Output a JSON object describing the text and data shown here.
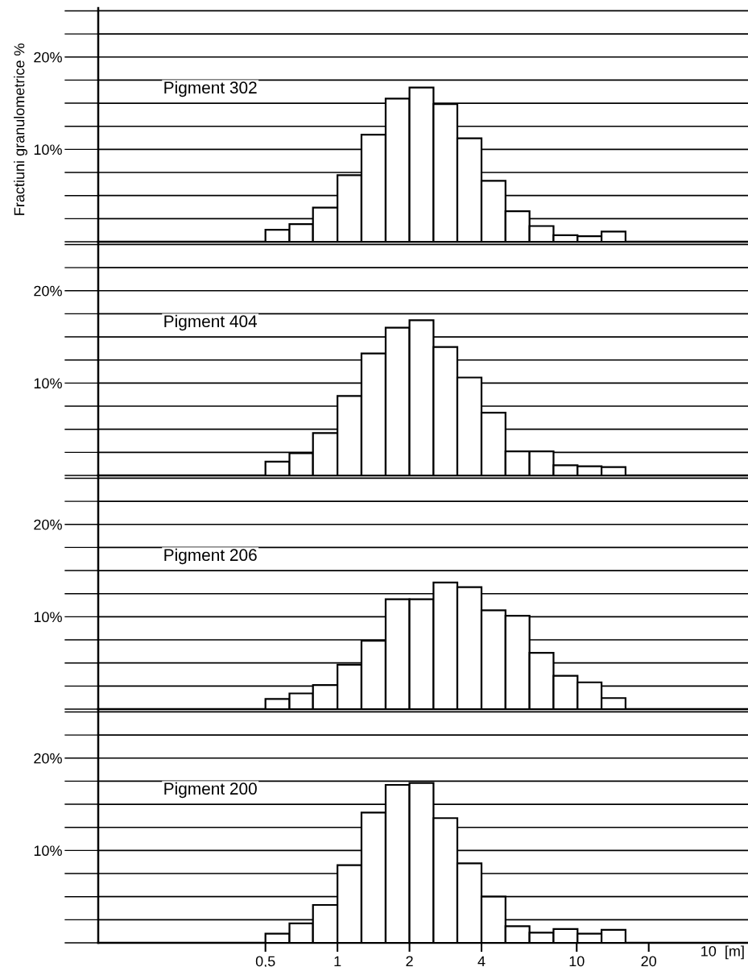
{
  "chart_data": [
    {
      "type": "histogram",
      "title": "Pigment 302",
      "ylabel": "Fractiuni granulometrice %",
      "color": "#ffffff",
      "log": "x",
      "grid": "y",
      "tick_labels": "y",
      "bins": [
        0.5,
        0.63,
        0.79,
        1,
        1.26,
        1.59,
        2,
        2.52,
        3.17,
        4,
        5.04,
        6.35,
        8,
        10.08,
        12.7,
        16
      ],
      "values": [
        1.3,
        1.9,
        3.7,
        7.2,
        11.6,
        15.5,
        16.7,
        14.9,
        11.2,
        6.6,
        3.3,
        1.7,
        0.7,
        0.6,
        1.1
      ],
      "xlim": [
        0.1,
        52
      ],
      "ylim": [
        0,
        25.3
      ],
      "yticks": [
        {
          "value": 0,
          "label": null
        },
        {
          "value": 2.5,
          "label": null
        },
        {
          "value": 5,
          "label": null
        },
        {
          "value": 7.5,
          "label": null
        },
        {
          "value": 10,
          "label": "10%"
        },
        {
          "value": 12.5,
          "label": null
        },
        {
          "value": 15,
          "label": null
        },
        {
          "value": 17.5,
          "label": null
        },
        {
          "value": 20,
          "label": "20%"
        },
        {
          "value": 22.5,
          "label": null
        },
        {
          "value": 25,
          "label": null
        }
      ]
    },
    {
      "type": "histogram",
      "title": "Pigment 404",
      "color": "#ffffff",
      "log": "x",
      "grid": "y",
      "tick_labels": "y",
      "bins": [
        0.5,
        0.63,
        0.79,
        1,
        1.26,
        1.59,
        2,
        2.52,
        3.17,
        4,
        5.04,
        6.35,
        8,
        10.08,
        12.7,
        16
      ],
      "values": [
        1.5,
        2.4,
        4.6,
        8.6,
        13.2,
        16.0,
        16.8,
        13.9,
        10.6,
        6.8,
        2.6,
        2.6,
        1.1,
        1.0,
        0.9
      ],
      "xlim": [
        0.1,
        52
      ],
      "ylim": [
        0,
        25.3
      ],
      "yticks": [
        {
          "value": 0,
          "label": null
        },
        {
          "value": 2.5,
          "label": null
        },
        {
          "value": 5,
          "label": null
        },
        {
          "value": 7.5,
          "label": null
        },
        {
          "value": 10,
          "label": "10%"
        },
        {
          "value": 12.5,
          "label": null
        },
        {
          "value": 15,
          "label": null
        },
        {
          "value": 17.5,
          "label": null
        },
        {
          "value": 20,
          "label": "20%"
        },
        {
          "value": 22.5,
          "label": null
        },
        {
          "value": 25,
          "label": null
        }
      ]
    },
    {
      "type": "histogram",
      "title": "Pigment 206",
      "color": "#ffffff",
      "log": "x",
      "grid": "y",
      "tick_labels": "y",
      "bins": [
        0.5,
        0.63,
        0.79,
        1,
        1.26,
        1.59,
        2,
        2.52,
        3.17,
        4,
        5.04,
        6.35,
        8,
        10.08,
        12.7,
        16
      ],
      "values": [
        1.1,
        1.7,
        2.6,
        4.8,
        7.4,
        11.9,
        11.9,
        13.7,
        13.2,
        10.7,
        10.1,
        6.1,
        3.6,
        2.9,
        1.2
      ],
      "xlim": [
        0.1,
        52
      ],
      "ylim": [
        0,
        25.3
      ],
      "yticks": [
        {
          "value": 0,
          "label": null
        },
        {
          "value": 2.5,
          "label": null
        },
        {
          "value": 5,
          "label": null
        },
        {
          "value": 7.5,
          "label": null
        },
        {
          "value": 10,
          "label": "10%"
        },
        {
          "value": 12.5,
          "label": null
        },
        {
          "value": 15,
          "label": null
        },
        {
          "value": 17.5,
          "label": null
        },
        {
          "value": 20,
          "label": "20%"
        },
        {
          "value": 22.5,
          "label": null
        },
        {
          "value": 25,
          "label": null
        }
      ]
    },
    {
      "type": "histogram",
      "title": "Pigment 200",
      "annotations": [
        "10  [m]"
      ],
      "color": "#ffffff",
      "log": "x",
      "grid": "y",
      "bins": [
        0.5,
        0.63,
        0.79,
        1,
        1.26,
        1.59,
        2,
        2.52,
        3.17,
        4,
        5.04,
        6.35,
        8,
        10.08,
        12.7,
        16
      ],
      "values": [
        1.0,
        2.1,
        4.1,
        8.4,
        14.1,
        17.1,
        17.3,
        13.5,
        8.6,
        5.0,
        1.8,
        1.1,
        1.5,
        1.0,
        1.4
      ],
      "xlim": [
        0.1,
        52
      ],
      "ylim": [
        0,
        25.3
      ],
      "xticks": [
        {
          "value": 0.5,
          "label": "0,5"
        },
        1,
        2,
        4,
        10,
        20
      ],
      "yticks": [
        {
          "value": 0,
          "label": null
        },
        {
          "value": 2.5,
          "label": null
        },
        {
          "value": 5,
          "label": null
        },
        {
          "value": 7.5,
          "label": null
        },
        {
          "value": 10,
          "label": "10%"
        },
        {
          "value": 12.5,
          "label": null
        },
        {
          "value": 15,
          "label": null
        },
        {
          "value": 17.5,
          "label": null
        },
        {
          "value": 20,
          "label": "20%"
        },
        {
          "value": 22.5,
          "label": null
        },
        {
          "value": 25,
          "label": null
        }
      ]
    }
  ]
}
